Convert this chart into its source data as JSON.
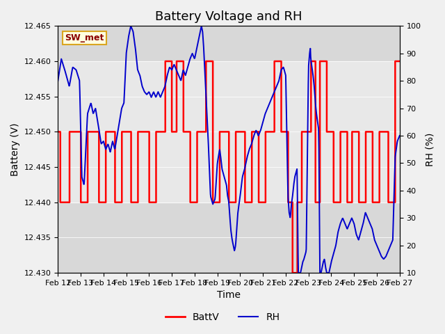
{
  "title": "Battery Voltage and RH",
  "xlabel": "Time",
  "ylabel_left": "Battery (V)",
  "ylabel_right": "RH (%)",
  "station_label": "SW_met",
  "ylim_left": [
    12.43,
    12.465
  ],
  "ylim_right": [
    10,
    100
  ],
  "yticks_left": [
    12.43,
    12.435,
    12.44,
    12.445,
    12.45,
    12.455,
    12.46,
    12.465
  ],
  "yticks_right": [
    10,
    20,
    30,
    40,
    50,
    60,
    70,
    80,
    90,
    100
  ],
  "background_color": "#f0f0f0",
  "plot_bg_color": "#d8d8d8",
  "shaded_band_color": "#e8e8e8",
  "shaded_band_low": 12.44,
  "shaded_band_high": 12.46,
  "battv_color": "#ff0000",
  "rh_color": "#0000cc",
  "title_fontsize": 13,
  "axis_fontsize": 10,
  "tick_fontsize": 8,
  "legend_fontsize": 10,
  "battv_linewidth": 1.8,
  "rh_linewidth": 1.4
}
